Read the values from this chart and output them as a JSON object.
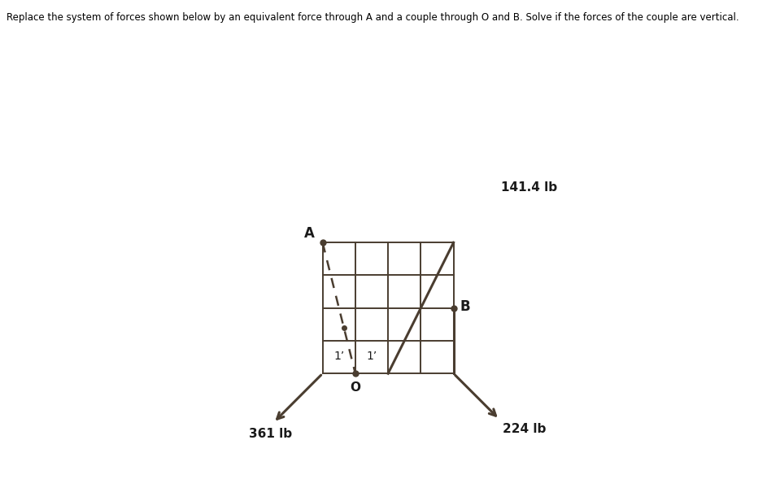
{
  "title_text": "Replace the system of forces shown below by an equivalent force through A and a couple through O and B. Solve if the forces of the couple are vertical.",
  "bg_color": "#c4bdb0",
  "grid_color": "#4a3d30",
  "figure_bg": "#ffffff",
  "A_label": "A",
  "O_label": "O",
  "B_label": "B",
  "force1_label": "141.4 lb",
  "force2_label": "361 lb",
  "force3_label": "224 lb",
  "label_1_left": "1’",
  "label_1_right": "1’"
}
